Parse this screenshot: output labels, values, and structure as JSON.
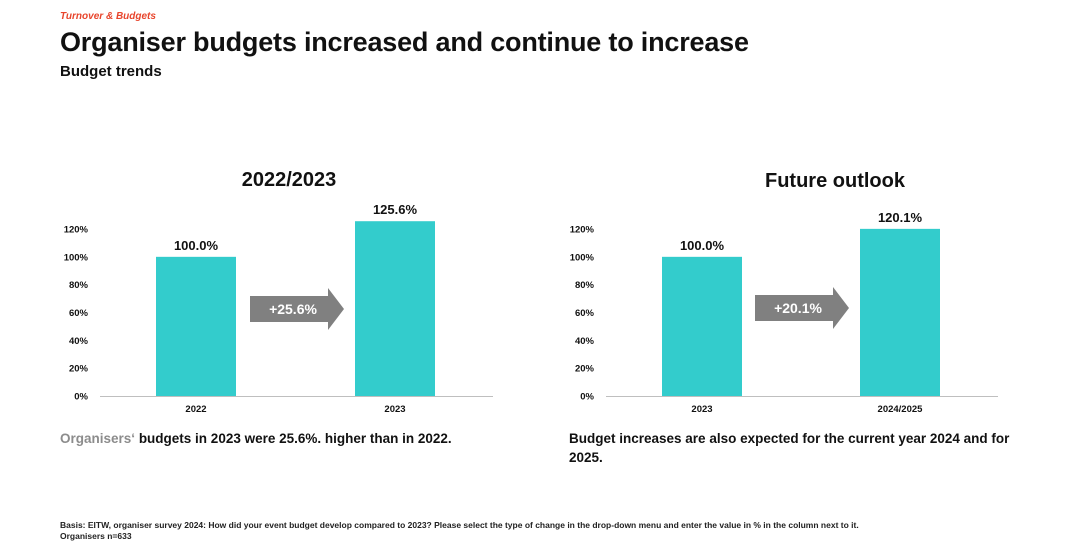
{
  "header": {
    "kicker": "Turnover & Budgets",
    "title": "Organiser budgets increased and continue to increase",
    "subtitle": "Budget trends"
  },
  "colors": {
    "bar": "#33cccc",
    "arrow": "#808080",
    "kicker": "#e8452c"
  },
  "chart_data": [
    {
      "type": "bar",
      "title": "2022/2023",
      "categories": [
        "2022",
        "2023"
      ],
      "values": [
        100.0,
        125.6
      ],
      "value_labels": [
        "100.0%",
        "125.6%"
      ],
      "yticks": [
        "0%",
        "20%",
        "40%",
        "60%",
        "80%",
        "100%",
        "120%"
      ],
      "ylim": [
        0,
        120
      ],
      "arrow_label": "+25.6%",
      "caption_muted": "Organisers‘",
      "caption": "budgets in 2023 were 25.6%. higher than in 2022."
    },
    {
      "type": "bar",
      "title": "Future outlook",
      "categories": [
        "2023",
        "2024/2025"
      ],
      "values": [
        100.0,
        120.1
      ],
      "value_labels": [
        "100.0%",
        "120.1%"
      ],
      "yticks": [
        "0%",
        "20%",
        "40%",
        "60%",
        "80%",
        "100%",
        "120%"
      ],
      "ylim": [
        0,
        120
      ],
      "arrow_label": "+20.1%",
      "caption": "Budget increases are also expected for the current year 2024 and for 2025."
    }
  ],
  "footer": {
    "basis": "Basis: EITW, organiser survey 2024: How did your event budget develop compared to 2023? Please select the type of change in the drop-down menu and enter the value in % in the column next to it.",
    "sample": "Organisers n=633"
  }
}
